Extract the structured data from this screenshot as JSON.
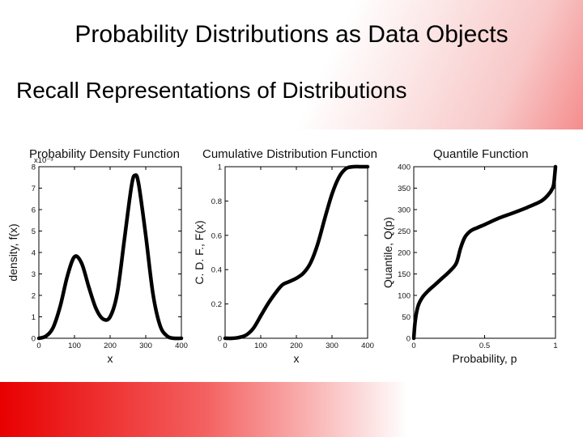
{
  "slide": {
    "title": "Probability Distributions as Data Objects",
    "subtitle": "Recall Representations of Distributions"
  },
  "chart_data": [
    {
      "type": "line",
      "title": "Probability Density Function",
      "xlabel": "x",
      "ylabel": "density, f(x)",
      "y_multiplier": "x10⁻³",
      "xlim": [
        0,
        400
      ],
      "ylim": [
        0,
        8
      ],
      "xticks": [
        0,
        100,
        200,
        300,
        400
      ],
      "yticks": [
        0,
        1,
        2,
        3,
        4,
        5,
        6,
        7,
        8
      ],
      "grid": false,
      "x": [
        0,
        20,
        40,
        60,
        80,
        100,
        120,
        140,
        160,
        180,
        200,
        220,
        240,
        260,
        270,
        280,
        300,
        320,
        340,
        360,
        380,
        400
      ],
      "y": [
        0.0,
        0.1,
        0.5,
        1.5,
        2.9,
        3.8,
        3.5,
        2.4,
        1.4,
        0.9,
        1.0,
        2.1,
        4.6,
        7.1,
        7.6,
        7.2,
        4.8,
        2.1,
        0.6,
        0.1,
        0.0,
        0.0
      ]
    },
    {
      "type": "line",
      "title": "Cumulative Distribution Function",
      "xlabel": "x",
      "ylabel": "C. D. F., F(x)",
      "xlim": [
        0,
        400
      ],
      "ylim": [
        0,
        1
      ],
      "xticks": [
        0,
        100,
        200,
        300,
        400
      ],
      "yticks": [
        0,
        0.2,
        0.4,
        0.6,
        0.8,
        1
      ],
      "grid": false,
      "x": [
        0,
        20,
        40,
        60,
        80,
        100,
        120,
        140,
        160,
        180,
        200,
        220,
        240,
        260,
        280,
        300,
        320,
        340,
        360,
        380,
        400
      ],
      "y": [
        0.0,
        0.0,
        0.005,
        0.02,
        0.06,
        0.13,
        0.2,
        0.26,
        0.31,
        0.33,
        0.35,
        0.38,
        0.44,
        0.55,
        0.7,
        0.84,
        0.94,
        0.99,
        1.0,
        1.0,
        1.0
      ]
    },
    {
      "type": "line",
      "title": "Quantile Function",
      "xlabel": "Probability, p",
      "ylabel": "Quantile, Q(p)",
      "xlim": [
        0,
        1
      ],
      "ylim": [
        0,
        400
      ],
      "xticks": [
        0,
        0.5,
        1
      ],
      "yticks": [
        0,
        50,
        100,
        150,
        200,
        250,
        300,
        350,
        400
      ],
      "grid": false,
      "x": [
        0,
        0.01,
        0.03,
        0.06,
        0.1,
        0.15,
        0.2,
        0.25,
        0.3,
        0.33,
        0.36,
        0.4,
        0.45,
        0.5,
        0.6,
        0.7,
        0.8,
        0.9,
        0.95,
        0.98,
        0.99,
        1.0
      ],
      "y": [
        0,
        40,
        75,
        95,
        110,
        125,
        140,
        155,
        175,
        210,
        235,
        250,
        258,
        265,
        280,
        292,
        305,
        320,
        335,
        350,
        365,
        400
      ]
    }
  ]
}
